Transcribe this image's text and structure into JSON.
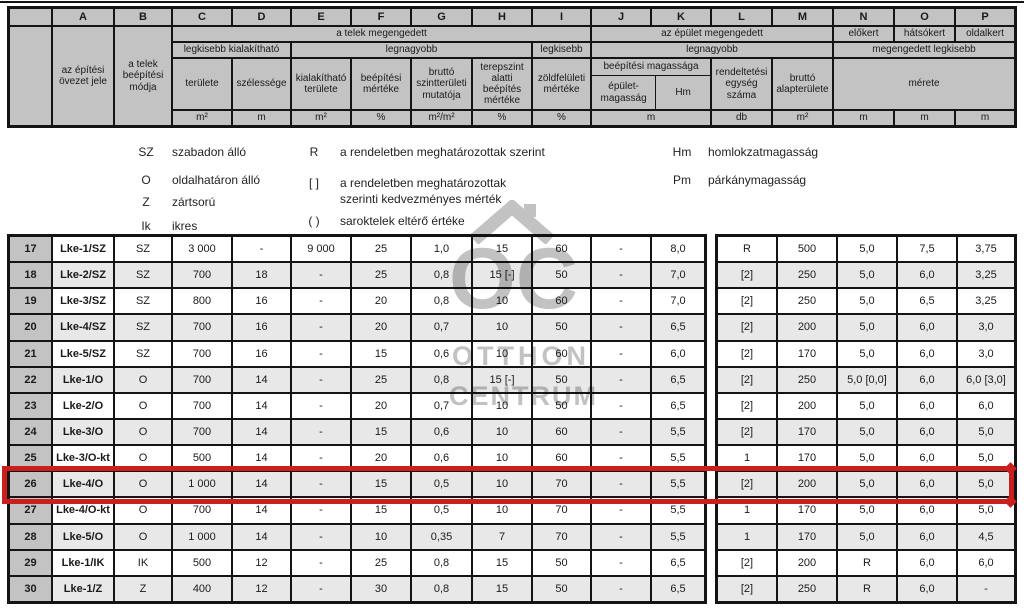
{
  "header": {
    "letters": [
      "",
      "A",
      "B",
      "C",
      "D",
      "E",
      "F",
      "G",
      "H",
      "I",
      "J",
      "K",
      "L",
      "M",
      "N",
      "O",
      "P"
    ],
    "a_label": "az építési övezet jele",
    "b_label": "a telek beépítési módja",
    "telek_megengedett": "a telek megengedett",
    "epulet_megengedett": "az épület megengedett",
    "elokert": "előkert",
    "hatsokert": "hátsókert",
    "oldalkert": "oldalkert",
    "legkisebb_kialakithato": "legkisebb kialakítható",
    "legnagyobb_telek": "legnagyobb",
    "legkisebb": "legkisebb",
    "legnagyobb_epulet": "legnagyobb",
    "megengedett_legkisebb": "megengedett legkisebb",
    "col_c": "területe",
    "col_d": "szélessége",
    "col_e": "kialakítható területe",
    "col_f": "beépítési mértéke",
    "col_g": "bruttó szintterületi mutatója",
    "col_h": "terepszint alatti beépítés mértéke",
    "col_i": "zöldfelületi mértéke",
    "beepitesi_magassaga": "beépítési magassága",
    "epulet_magassag": "épület-magasság",
    "hm": "Hm",
    "col_l": "rendeltetési egység száma",
    "col_m": "bruttó alapterülete",
    "merete": "mérete",
    "units": {
      "c": "m²",
      "d": "m",
      "e": "m²",
      "f": "%",
      "g": "m²/m²",
      "h": "%",
      "i": "%",
      "jk": "m",
      "l": "db",
      "m": "m²",
      "n": "m",
      "o": "m",
      "p": "m"
    }
  },
  "legend": {
    "left": [
      [
        "SZ",
        "szabadon álló"
      ],
      [
        "O",
        "oldalhatáron álló"
      ],
      [
        "Z",
        "zártsorú"
      ],
      [
        "Ik",
        "ikres"
      ]
    ],
    "mid": [
      [
        "R",
        "a rendeletben meghatározottak szerint"
      ],
      [
        "[ ]",
        "a rendeletben meghatározottak szerinti kedvezményes mérték"
      ],
      [
        "( )",
        "saroktelek eltérő értéke"
      ]
    ],
    "right": [
      [
        "Hm",
        "homlokzatmagasság"
      ],
      [
        "Pm",
        "párkánymagasság"
      ]
    ]
  },
  "watermark": {
    "monogram": "OC",
    "line1": "OTTHON",
    "line2": "CENTRUM"
  },
  "table": {
    "highlighted_row": "26",
    "rows": [
      {
        "highlight": false,
        "cells": [
          "17",
          "Lke-1/SZ",
          "SZ",
          "3 000",
          "-",
          "9 000",
          "25",
          "1,0",
          "15",
          "60",
          "-",
          "8,0",
          "R",
          "500",
          "5,0",
          "7,5",
          "3,75"
        ]
      },
      {
        "highlight": false,
        "cells": [
          "18",
          "Lke-2/SZ",
          "SZ",
          "700",
          "18",
          "-",
          "25",
          "0,8",
          "15 [-]",
          "50",
          "-",
          "7,0",
          "[2]",
          "250",
          "5,0",
          "6,0",
          "3,25"
        ]
      },
      {
        "highlight": false,
        "cells": [
          "19",
          "Lke-3/SZ",
          "SZ",
          "800",
          "16",
          "-",
          "20",
          "0,8",
          "10",
          "60",
          "-",
          "7,0",
          "[2]",
          "250",
          "5,0",
          "6,5",
          "3,25"
        ]
      },
      {
        "highlight": false,
        "cells": [
          "20",
          "Lke-4/SZ",
          "SZ",
          "700",
          "16",
          "-",
          "20",
          "0,7",
          "10",
          "50",
          "-",
          "6,5",
          "[2]",
          "200",
          "5,0",
          "6,0",
          "3,0"
        ]
      },
      {
        "highlight": false,
        "cells": [
          "21",
          "Lke-5/SZ",
          "SZ",
          "700",
          "16",
          "-",
          "15",
          "0,6",
          "10",
          "60",
          "-",
          "6,0",
          "[2]",
          "170",
          "5,0",
          "6,0",
          "3,0"
        ]
      },
      {
        "highlight": false,
        "cells": [
          "22",
          "Lke-1/O",
          "O",
          "700",
          "14",
          "-",
          "25",
          "0,8",
          "15 [-]",
          "50",
          "-",
          "6,5",
          "[2]",
          "250",
          "5,0 [0,0]",
          "6,0",
          "6,0 [3,0]"
        ]
      },
      {
        "highlight": false,
        "cells": [
          "23",
          "Lke-2/O",
          "O",
          "700",
          "14",
          "-",
          "20",
          "0,7",
          "10",
          "50",
          "-",
          "6,5",
          "[2]",
          "200",
          "5,0",
          "6,0",
          "6,0"
        ]
      },
      {
        "highlight": false,
        "cells": [
          "24",
          "Lke-3/O",
          "O",
          "700",
          "14",
          "-",
          "15",
          "0,6",
          "10",
          "60",
          "-",
          "5,5",
          "[2]",
          "170",
          "5,0",
          "6,0",
          "5,0"
        ]
      },
      {
        "highlight": false,
        "cells": [
          "25",
          "Lke-3/O-kt",
          "O",
          "500",
          "14",
          "-",
          "20",
          "0,6",
          "10",
          "60",
          "-",
          "5,5",
          "1",
          "170",
          "5,0",
          "6,0",
          "5,0"
        ]
      },
      {
        "highlight": true,
        "cells": [
          "26",
          "Lke-4/O",
          "O",
          "1 000",
          "14",
          "-",
          "15",
          "0,5",
          "10",
          "70",
          "-",
          "5,5",
          "[2]",
          "200",
          "5,0",
          "6,0",
          "5,0"
        ]
      },
      {
        "highlight": false,
        "cells": [
          "27",
          "Lke-4/O-kt",
          "O",
          "700",
          "14",
          "-",
          "15",
          "0,5",
          "10",
          "70",
          "-",
          "5,5",
          "1",
          "170",
          "5,0",
          "6,0",
          "5,0"
        ]
      },
      {
        "highlight": false,
        "cells": [
          "28",
          "Lke-5/O",
          "O",
          "1 000",
          "14",
          "-",
          "10",
          "0,35",
          "7",
          "70",
          "-",
          "5,5",
          "1",
          "170",
          "5,0",
          "6,0",
          "4,5"
        ]
      },
      {
        "highlight": false,
        "cells": [
          "29",
          "Lke-1/IK",
          "IK",
          "500",
          "12",
          "-",
          "25",
          "0,8",
          "15",
          "50",
          "-",
          "6,5",
          "[2]",
          "200",
          "R",
          "6,0",
          "6,0"
        ]
      },
      {
        "highlight": false,
        "cells": [
          "30",
          "Lke-1/Z",
          "Z",
          "400",
          "12",
          "-",
          "30",
          "0,8",
          "15",
          "50",
          "-",
          "6,5",
          "[2]",
          "250",
          "R",
          "6,0",
          "-"
        ]
      }
    ]
  }
}
